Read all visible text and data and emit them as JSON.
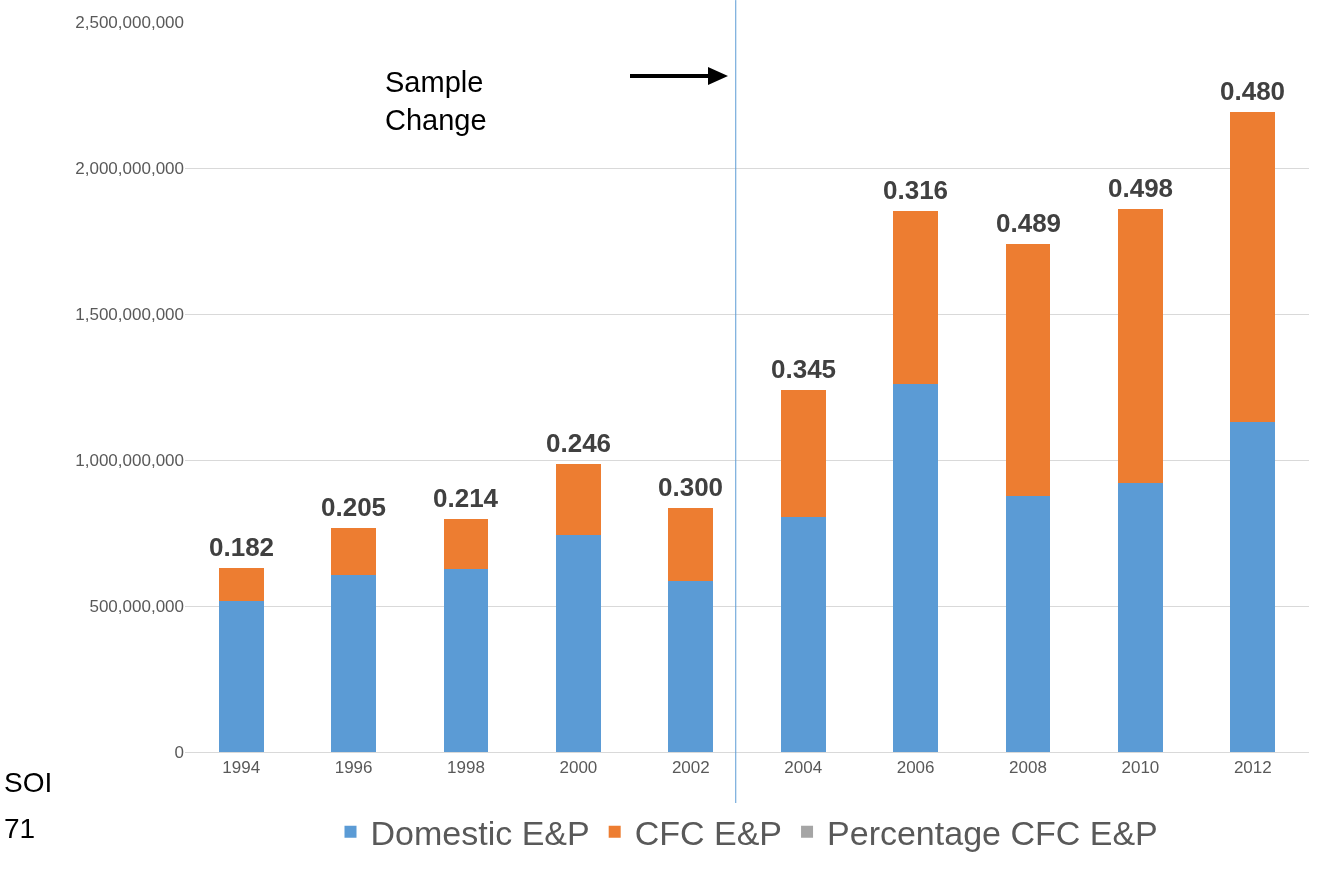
{
  "chart_data": {
    "type": "bar",
    "stacked": true,
    "x": [
      1994,
      1996,
      1998,
      2000,
      2002,
      2004,
      2006,
      2008,
      2010,
      2012
    ],
    "xlim": [
      1993,
      2013
    ],
    "xticks": [
      1994,
      1996,
      1998,
      2000,
      2002,
      2004,
      2006,
      2008,
      2010,
      2012
    ],
    "series": [
      {
        "name": "Domestic E&P",
        "color": "#5b9bd5",
        "values": [
          518000000,
          607000000,
          628000000,
          744000000,
          587000000,
          805000000,
          1259000000,
          877000000,
          921000000,
          1129000000
        ]
      },
      {
        "name": "CFC E&P",
        "color": "#ed7d31",
        "values": [
          113000000,
          160000000,
          170000000,
          242000000,
          249000000,
          436000000,
          593000000,
          862000000,
          938000000,
          1064000000
        ]
      },
      {
        "name": "Percentage CFC E&P",
        "color": "#a5a5a5",
        "values": [
          null,
          null,
          null,
          null,
          null,
          null,
          null,
          null,
          null,
          null
        ]
      }
    ],
    "ylim": [
      0,
      2500000000
    ],
    "yticks": [
      {
        "value": 0,
        "label": "0"
      },
      {
        "value": 500000000,
        "label": "500,000,000"
      },
      {
        "value": 1000000000,
        "label": "1,000,000,000"
      },
      {
        "value": 1500000000,
        "label": "1,500,000,000"
      },
      {
        "value": 2000000000,
        "label": "2,000,000,000"
      },
      {
        "value": 2500000000,
        "label": "2,500,000,000"
      }
    ],
    "grid": "y",
    "legend": "bottom",
    "ref_lines": [
      {
        "axis": "x",
        "value": 2002.8,
        "color": "#5b9bd5"
      }
    ],
    "annotations": [
      "Sample\nChange",
      "SOI",
      "71",
      {
        "text": "0.182",
        "x": 1994,
        "y": 631000000
      },
      {
        "text": "0.205",
        "x": 1996,
        "y": 767000000
      },
      {
        "text": "0.214",
        "x": 1998,
        "y": 798000000
      },
      {
        "text": "0.246",
        "x": 2000,
        "y": 986000000
      },
      {
        "text": "0.300",
        "x": 2002,
        "y": 836000000
      },
      {
        "text": "0.345",
        "x": 2004,
        "y": 1241000000
      },
      {
        "text": "0.316",
        "x": 2006,
        "y": 1852000000
      },
      {
        "text": "0.489",
        "x": 2008,
        "y": 1739000000
      },
      {
        "text": "0.498",
        "x": 2010,
        "y": 1859000000
      },
      {
        "text": "0.480",
        "x": 2012,
        "y": 2193000000
      }
    ]
  }
}
